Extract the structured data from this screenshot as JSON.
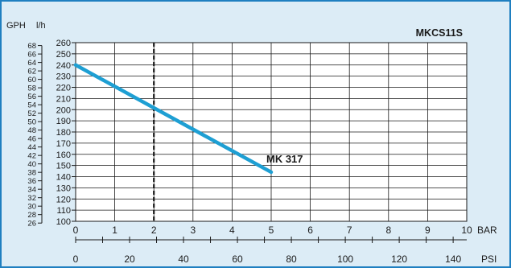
{
  "colors": {
    "frame_background": "#dcecf6",
    "frame_border": "#1f7fc0",
    "plot_background": "#ffffff",
    "grid": "#1a1a1a",
    "series_line": "#1e9fd3",
    "marker_line": "#1a1a1a",
    "text": "#1a1a1a"
  },
  "chart_data": {
    "type": "line",
    "title": "MKCS11S",
    "y_left_unit": "l/h",
    "y_outer_unit": "GPH",
    "x_unit": "BAR",
    "x_secondary_unit": "PSI",
    "xlim": [
      0,
      10
    ],
    "ylim": [
      100,
      260
    ],
    "x_ticks": [
      0,
      1,
      2,
      3,
      4,
      5,
      6,
      7,
      8,
      9,
      10
    ],
    "y_ticks": [
      100,
      110,
      120,
      130,
      140,
      150,
      160,
      170,
      180,
      190,
      200,
      210,
      220,
      230,
      240,
      250,
      260
    ],
    "gph_ticks": [
      26,
      28,
      30,
      32,
      34,
      36,
      38,
      40,
      42,
      44,
      46,
      48,
      50,
      52,
      54,
      56,
      58,
      60,
      62,
      64,
      66,
      68
    ],
    "psi_ticks": [
      0,
      20,
      40,
      60,
      80,
      100,
      120,
      140
    ],
    "psi_per_bar": 14.5038,
    "gph_per_lph": 0.264172,
    "grid": true,
    "reference_line_x": 2,
    "series": [
      {
        "name": "MK 317",
        "x": [
          0,
          5
        ],
        "y": [
          240,
          144
        ]
      }
    ]
  }
}
